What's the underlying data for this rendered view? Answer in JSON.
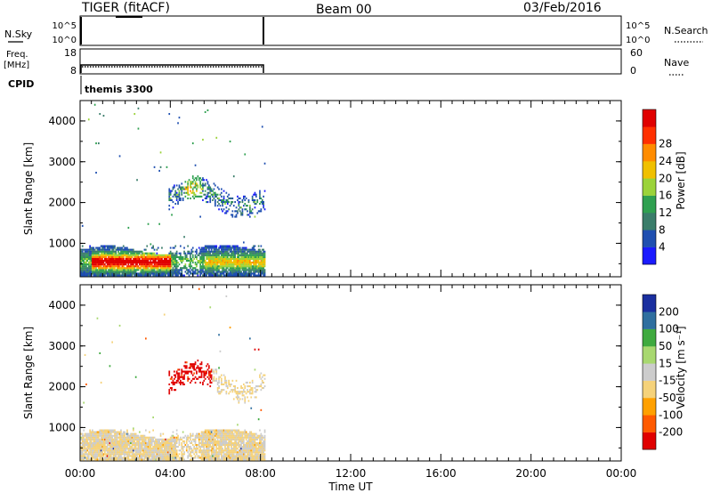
{
  "header": {
    "radar": "TIGER (fitACF)",
    "beam": "Beam 00",
    "date": "03/Feb/2016"
  },
  "nsky_panel": {
    "left_label": "N.Sky",
    "right_label": "N.Search",
    "left_ticks": [
      "10^5",
      "10^0"
    ],
    "right_ticks": [
      "10^5",
      "10^0"
    ]
  },
  "freq_panel": {
    "left_label_line1": "Freq.",
    "left_label_line2": "[MHz]",
    "right_label": "Nave",
    "left_ticks": [
      "18",
      "8"
    ],
    "right_ticks": [
      "60",
      "0"
    ]
  },
  "cpid_panel": {
    "label": "CPID",
    "value": "themis 3300"
  },
  "colors": {
    "power_scale": [
      "#1a1aff",
      "#1f4fb0",
      "#3a7d6a",
      "#2fa050",
      "#9bd33a",
      "#f0c000",
      "#ff8c00",
      "#ff3000",
      "#e00000"
    ],
    "velocity_scale": [
      "#e00000",
      "#ff5a00",
      "#ffa000",
      "#f5d27a",
      "#cccccc",
      "#a8d870",
      "#3faa3f",
      "#2f6f9f",
      "#1a2f9f"
    ]
  },
  "chart_data": [
    {
      "type": "heatmap",
      "panel": "power",
      "title": "",
      "xlabel": "",
      "ylabel": "Slant Range [km]",
      "xlim_hours": [
        0,
        24
      ],
      "ylim": [
        180,
        4500
      ],
      "y_ticks": [
        "1000",
        "2000",
        "3000",
        "4000"
      ],
      "colorbar_label": "Power [dB]",
      "colorbar_ticks": [
        "4",
        "8",
        "12",
        "16",
        "20",
        "24",
        "28"
      ],
      "data_time_span_hours": [
        0,
        8.2
      ],
      "features": [
        {
          "name": "near-range band",
          "t": [
            0,
            8.2
          ],
          "range_km": [
            200,
            900
          ],
          "power_db": "4-28"
        },
        {
          "name": "mid-range patch",
          "t": [
            4,
            8.2
          ],
          "range_km": [
            1700,
            2600
          ],
          "power_db": "4-20"
        }
      ]
    },
    {
      "type": "heatmap",
      "panel": "velocity",
      "title": "",
      "xlabel": "Time UT",
      "ylabel": "Slant Range [km]",
      "xlim_hours": [
        0,
        24
      ],
      "ylim": [
        180,
        4500
      ],
      "y_ticks": [
        "1000",
        "2000",
        "3000",
        "4000"
      ],
      "x_ticks": [
        "00:00",
        "04:00",
        "08:00",
        "12:00",
        "16:00",
        "20:00",
        "00:00"
      ],
      "colorbar_label": "Velocity [m s⁻¹]",
      "colorbar_ticks": [
        "200",
        "100",
        "50",
        "15",
        "-15",
        "-50",
        "-100",
        "-200"
      ],
      "data_time_span_hours": [
        0,
        8.2
      ],
      "features": [
        {
          "name": "near-range ground scatter",
          "t": [
            0,
            8.2
          ],
          "range_km": [
            200,
            900
          ],
          "velocity_ms": "-15 to 15"
        },
        {
          "name": "mid-range patch",
          "t": [
            4,
            5.8
          ],
          "range_km": [
            1900,
            2600
          ],
          "velocity_ms": "-200"
        }
      ]
    }
  ]
}
